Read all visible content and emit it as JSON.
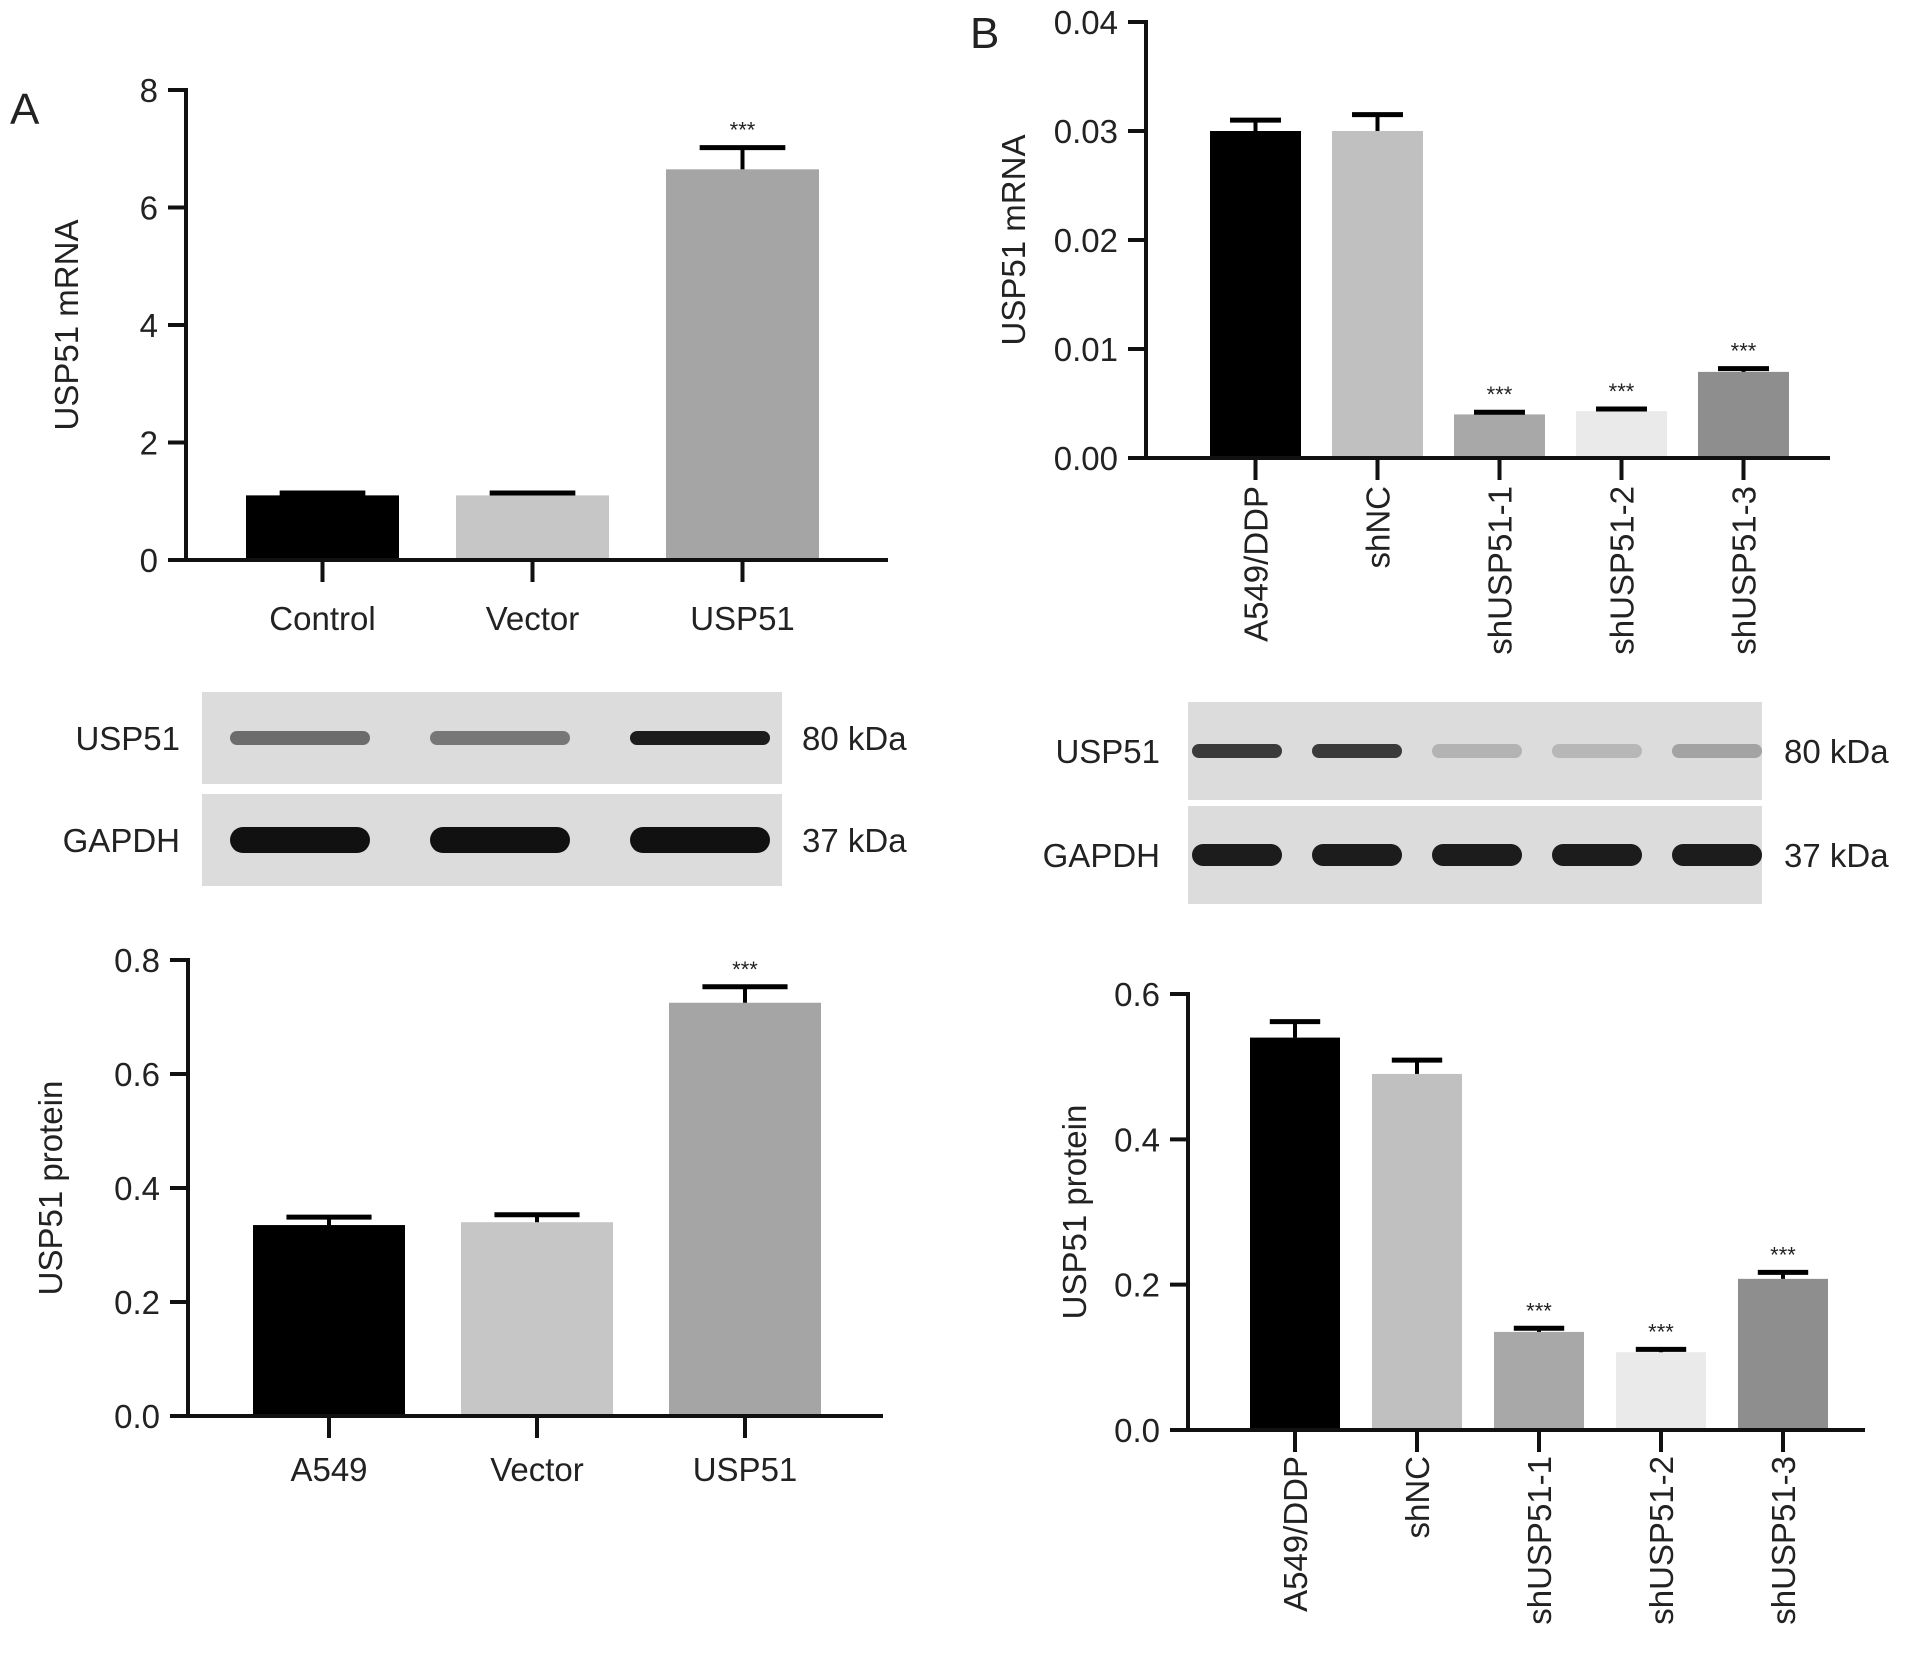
{
  "panels": [
    {
      "label": "A"
    },
    {
      "label": "B"
    }
  ],
  "blots": [
    {
      "rows": [
        {
          "name": "USP51",
          "size": "80 kDa",
          "band_intensity": [
            0.55,
            0.5,
            0.95
          ]
        },
        {
          "name": "GAPDH",
          "size": "37 kDa",
          "band_intensity": [
            1.0,
            1.0,
            1.0
          ]
        }
      ]
    },
    {
      "rows": [
        {
          "name": "USP51",
          "size": "80 kDa",
          "band_intensity": [
            0.8,
            0.8,
            0.2,
            0.18,
            0.28
          ]
        },
        {
          "name": "GAPDH",
          "size": "37 kDa",
          "band_intensity": [
            0.95,
            0.95,
            0.95,
            0.95,
            0.95
          ]
        }
      ]
    }
  ],
  "chart_data": [
    {
      "type": "bar",
      "ylabel": "USP51 mRNA",
      "ylim": [
        0,
        8
      ],
      "yticks": [
        "0",
        "2",
        "4",
        "6",
        "8"
      ],
      "categories": [
        "Control",
        "Vector",
        "USP51"
      ],
      "values": [
        1.1,
        1.1,
        6.65
      ],
      "errors": [
        0.04,
        0.04,
        0.37
      ],
      "significance": [
        "",
        "",
        "***"
      ],
      "colors": [
        "#000000",
        "#c6c6c6",
        "#a5a5a5"
      ]
    },
    {
      "type": "bar",
      "ylabel": "USP51 protein",
      "ylim": [
        0,
        0.8
      ],
      "yticks": [
        "0.0",
        "0.2",
        "0.4",
        "0.6",
        "0.8"
      ],
      "categories": [
        "A549",
        "Vector",
        "USP51"
      ],
      "values": [
        0.335,
        0.34,
        0.725
      ],
      "errors": [
        0.014,
        0.013,
        0.028
      ],
      "significance": [
        "",
        "",
        "***"
      ],
      "colors": [
        "#000000",
        "#c6c6c6",
        "#a5a5a5"
      ]
    },
    {
      "type": "bar",
      "ylabel": "USP51 mRNA",
      "ylim": [
        0,
        0.04
      ],
      "yticks": [
        "0.00",
        "0.01",
        "0.02",
        "0.03",
        "0.04"
      ],
      "categories": [
        "A549/DDP",
        "shNC",
        "shUSP51-1",
        "shUSP51-2",
        "shUSP51-3"
      ],
      "values": [
        0.03,
        0.03,
        0.004,
        0.0043,
        0.0079
      ],
      "errors": [
        0.001,
        0.0015,
        0.0002,
        0.0002,
        0.0003
      ],
      "significance": [
        "",
        "",
        "***",
        "***",
        "***"
      ],
      "colors": [
        "#000000",
        "#c0c0c0",
        "#a8a8a8",
        "#eaeaea",
        "#8e8e8e"
      ]
    },
    {
      "type": "bar",
      "ylabel": "USP51 protein",
      "ylim": [
        0,
        0.6
      ],
      "yticks": [
        "0.0",
        "0.2",
        "0.4",
        "0.6"
      ],
      "categories": [
        "A549/DDP",
        "shNC",
        "shUSP51-1",
        "shUSP51-2",
        "shUSP51-3"
      ],
      "values": [
        0.54,
        0.49,
        0.135,
        0.107,
        0.208
      ],
      "errors": [
        0.022,
        0.019,
        0.005,
        0.004,
        0.009
      ],
      "significance": [
        "",
        "",
        "***",
        "***",
        "***"
      ],
      "colors": [
        "#000000",
        "#c0c0c0",
        "#a8a8a8",
        "#eaeaea",
        "#8e8e8e"
      ]
    }
  ]
}
